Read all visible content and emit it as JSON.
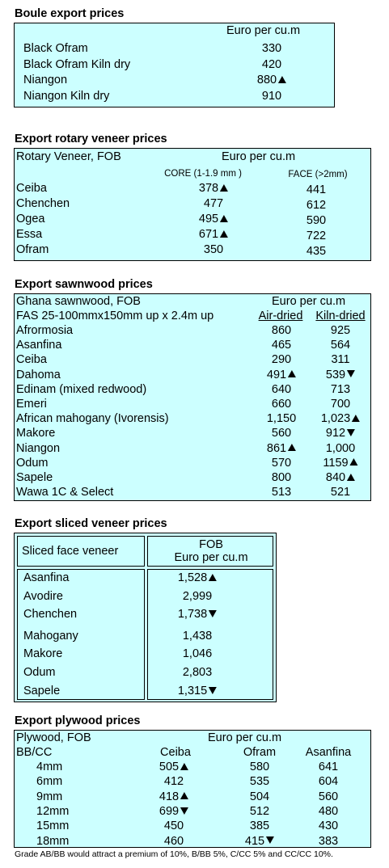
{
  "boule": {
    "title": "Boule export prices",
    "unit": "Euro per cu.m",
    "rows": [
      {
        "name": "Black Ofram",
        "value": "330",
        "trend": ""
      },
      {
        "name": "Black Ofram  Kiln dry",
        "value": "420",
        "trend": ""
      },
      {
        "name": "Niangon",
        "value": "880",
        "trend": "up"
      },
      {
        "name": "Niangon Kiln dry",
        "value": "910",
        "trend": ""
      }
    ]
  },
  "rotary": {
    "title": "Export rotary veneer prices",
    "label": "Rotary Veneer,  FOB",
    "unit": "Euro  per cu.m",
    "col1": "CORE (1-1.9 mm )",
    "col2": "FACE (>2mm)",
    "rows": [
      {
        "name": "Ceiba",
        "core": "378",
        "core_trend": "up",
        "face": "441"
      },
      {
        "name": "Chenchen",
        "core": "477",
        "core_trend": "",
        "face": "612"
      },
      {
        "name": "Ogea",
        "core": "495",
        "core_trend": "up",
        "face": "590"
      },
      {
        "name": "Essa",
        "core": "671",
        "core_trend": "up",
        "face": "722"
      },
      {
        "name": "Ofram",
        "core": "350",
        "core_trend": "",
        "face": "435"
      }
    ]
  },
  "sawn": {
    "title": "Export sawnwood prices",
    "label": "Ghana sawnwood, FOB",
    "unit": "Euro per cu.m",
    "spec": "FAS 25-100mmx150mm up x 2.4m up",
    "col1": "Air-dried",
    "col2": "Kiln-dried",
    "rows": [
      {
        "name": "Afrormosia",
        "air": "860",
        "air_trend": "",
        "kiln": "925",
        "kiln_trend": ""
      },
      {
        "name": "Asanfina",
        "air": "465",
        "air_trend": "",
        "kiln": "564",
        "kiln_trend": ""
      },
      {
        "name": "Ceiba",
        "air": "290",
        "air_trend": "",
        "kiln": "311",
        "kiln_trend": ""
      },
      {
        "name": "Dahoma",
        "air": "491",
        "air_trend": "up",
        "kiln": "539",
        "kiln_trend": "down"
      },
      {
        "name": "Edinam (mixed redwood)",
        "air": "640",
        "air_trend": "",
        "kiln": "713",
        "kiln_trend": ""
      },
      {
        "name": "Emeri",
        "air": "660",
        "air_trend": "",
        "kiln": "700",
        "kiln_trend": ""
      },
      {
        "name": "African mahogany (Ivorensis)",
        "air": "1,150",
        "air_trend": "",
        "kiln": "1,023",
        "kiln_trend": "up"
      },
      {
        "name": "Makore",
        "air": "560",
        "air_trend": "",
        "kiln": "912",
        "kiln_trend": "down"
      },
      {
        "name": "Niangon",
        "air": "861",
        "air_trend": "up",
        "kiln": "1,000",
        "kiln_trend": ""
      },
      {
        "name": "Odum",
        "air": "570",
        "air_trend": "",
        "kiln": "1159",
        "kiln_trend": "up"
      },
      {
        "name": "Sapele",
        "air": "800",
        "air_trend": "",
        "kiln": "840",
        "kiln_trend": "up"
      },
      {
        "name": "Wawa 1C & Select",
        "air": "513",
        "air_trend": "",
        "kiln": "521",
        "kiln_trend": ""
      }
    ]
  },
  "sliced": {
    "title": "Export  sliced veneer  prices",
    "label": "Sliced face veneer",
    "unit1": "FOB",
    "unit2": "Euro per cu.m",
    "rows": [
      {
        "name": "Asanfina",
        "value": "1,528",
        "trend": "up"
      },
      {
        "name": "Avodire",
        "value": "2,999",
        "trend": ""
      },
      {
        "name": "Chenchen",
        "value": "1,738",
        "trend": "down"
      },
      {
        "name": "Mahogany",
        "value": "1,438",
        "trend": ""
      },
      {
        "name": "Makore",
        "value": "1,046",
        "trend": ""
      },
      {
        "name": "Odum",
        "value": "2,803",
        "trend": ""
      },
      {
        "name": "Sapele",
        "value": "1,315",
        "trend": "down"
      }
    ]
  },
  "plywood": {
    "title": "Export plywood prices",
    "label": "Plywood, FOB",
    "unit": "Euro per cu.m",
    "grade": "BB/CC",
    "cols": [
      "Ceiba",
      "Ofram",
      "Asanfina"
    ],
    "rows": [
      {
        "size": "4mm",
        "v": [
          "505",
          "580",
          "641"
        ],
        "t": [
          "up",
          "",
          ""
        ]
      },
      {
        "size": "6mm",
        "v": [
          "412",
          "535",
          "604"
        ],
        "t": [
          "",
          "",
          ""
        ]
      },
      {
        "size": "9mm",
        "v": [
          "418",
          "504",
          "560"
        ],
        "t": [
          "up",
          "",
          ""
        ]
      },
      {
        "size": "12mm",
        "v": [
          "699",
          "512",
          "480"
        ],
        "t": [
          "down",
          "",
          ""
        ]
      },
      {
        "size": "15mm",
        "v": [
          "450",
          "385",
          "430"
        ],
        "t": [
          "",
          "",
          ""
        ]
      },
      {
        "size": "18mm",
        "v": [
          "460",
          "415",
          "383"
        ],
        "t": [
          "",
          "down",
          ""
        ]
      }
    ],
    "note": "Grade AB/BB would attract a premium of 10%, B/BB 5%, C/CC 5% and CC/CC 10%."
  }
}
